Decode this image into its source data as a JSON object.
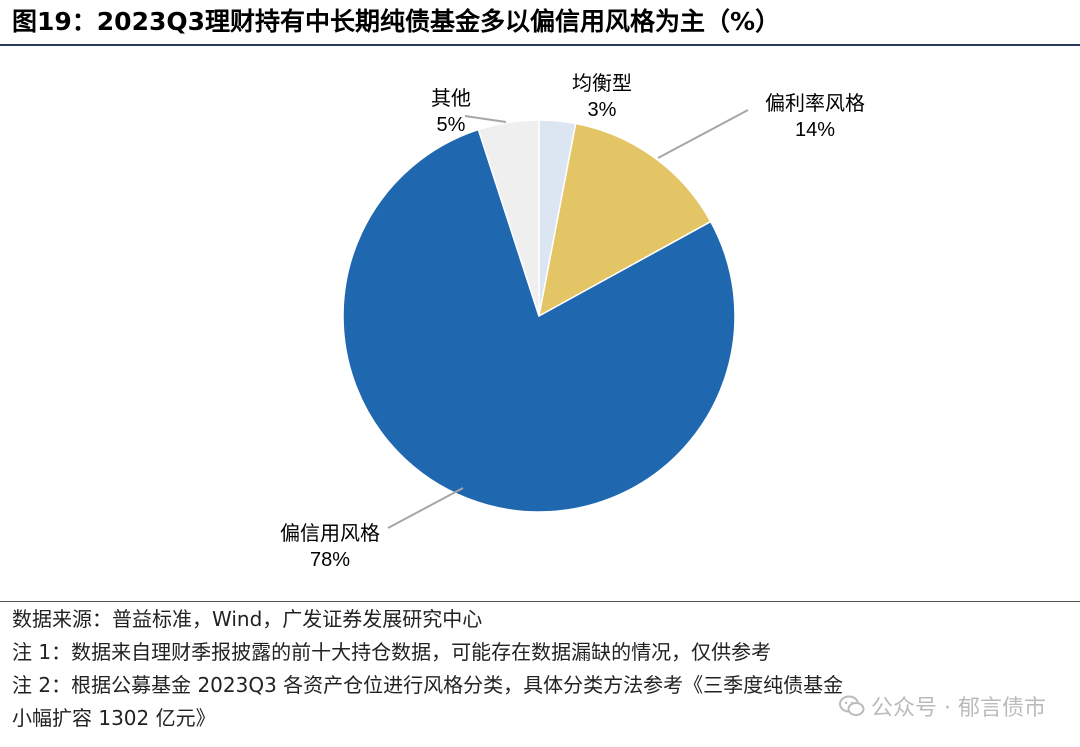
{
  "figure": {
    "title": "图19：2023Q3理财持有中长期纯债基金多以偏信用风格为主（%）"
  },
  "chart_data": {
    "type": "pie",
    "title": "",
    "slices": [
      {
        "label": "均衡型",
        "value": 3,
        "display": "3%",
        "color": "#dce6f2"
      },
      {
        "label": "偏利率风格",
        "value": 14,
        "display": "14%",
        "color": "#e3c566"
      },
      {
        "label": "偏信用风格",
        "value": 78,
        "display": "78%",
        "color": "#1f67ae"
      },
      {
        "label": "其他",
        "value": 5,
        "display": "5%",
        "color": "#efefef"
      }
    ],
    "start": "12 o'clock, clockwise",
    "leader_line_color": "#a6a6a6"
  },
  "notes": {
    "source": "数据来源：普益标准，Wind，广发证券发展研究中心",
    "note1": "注 1：数据来自理财季报披露的前十大持仓数据，可能存在数据漏缺的情况，仅供参考",
    "note2a": "注 2：根据公募基金 2023Q3 各资产仓位进行风格分类，具体分类方法参考《三季度纯债基金",
    "note2b": "小幅扩容 1302 亿元》"
  },
  "watermark": {
    "text": "公众号 · 郁言债市",
    "icon": "wechat-icon"
  }
}
